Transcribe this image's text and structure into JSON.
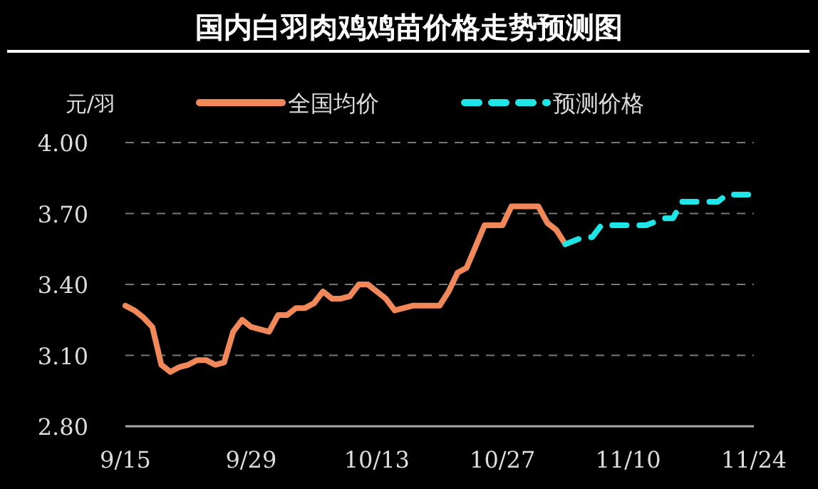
{
  "chart_data": {
    "type": "line",
    "title": "国内白羽肉鸡鸡苗价格走势预测图",
    "ylabel": "元/羽",
    "ylim": [
      2.8,
      4.0
    ],
    "yticks": [
      {
        "value": 2.8,
        "label": "2.80"
      },
      {
        "value": 3.1,
        "label": "3.10"
      },
      {
        "value": 3.4,
        "label": "3.40"
      },
      {
        "value": 3.7,
        "label": "3.70"
      },
      {
        "value": 4.0,
        "label": "4.00"
      }
    ],
    "xlim": [
      "--09-15",
      "--11-24"
    ],
    "xticks": [
      {
        "value": "--09-15",
        "label": "9/15"
      },
      {
        "value": "--09-29",
        "label": "9/29"
      },
      {
        "value": "--10-13",
        "label": "10/13"
      },
      {
        "value": "--10-27",
        "label": "10/27"
      },
      {
        "value": "--11-10",
        "label": "11/10"
      },
      {
        "value": "--11-24",
        "label": "11/24"
      }
    ],
    "grid": "y",
    "legend": "top",
    "series": [
      {
        "name": "全国均价",
        "color": "#f0885a",
        "line_style": "solid",
        "x": [
          "--09-15",
          "--09-16",
          "--09-17",
          "--09-18",
          "--09-19",
          "--09-20",
          "--09-21",
          "--09-22",
          "--09-23",
          "--09-24",
          "--09-25",
          "--09-26",
          "--09-27",
          "--09-28",
          "--09-29",
          "--10-01",
          "--10-02",
          "--10-03",
          "--10-04",
          "--10-05",
          "--10-06",
          "--10-07",
          "--10-08",
          "--10-09",
          "--10-10",
          "--10-11",
          "--10-12",
          "--10-13",
          "--10-14",
          "--10-15",
          "--10-17",
          "--10-19",
          "--10-20",
          "--10-21",
          "--10-22",
          "--10-23",
          "--10-25",
          "--10-27",
          "--10-28",
          "--10-31",
          "--11-01",
          "--11-02",
          "--11-03"
        ],
        "values": [
          3.31,
          3.29,
          3.26,
          3.22,
          3.06,
          3.03,
          3.05,
          3.06,
          3.08,
          3.08,
          3.06,
          3.07,
          3.2,
          3.25,
          3.22,
          3.2,
          3.27,
          3.27,
          3.3,
          3.3,
          3.32,
          3.37,
          3.34,
          3.34,
          3.35,
          3.4,
          3.4,
          3.37,
          3.34,
          3.29,
          3.31,
          3.31,
          3.31,
          3.37,
          3.45,
          3.47,
          3.65,
          3.65,
          3.73,
          3.73,
          3.66,
          3.63,
          3.57
        ]
      },
      {
        "name": "预测价格",
        "color": "#1ee6e6",
        "line_style": "dashed",
        "x": [
          "--11-03",
          "--11-05",
          "--11-06",
          "--11-07",
          "--11-10",
          "--11-12",
          "--11-14",
          "--11-15",
          "--11-16",
          "--11-20",
          "--11-21",
          "--11-24"
        ],
        "values": [
          3.57,
          3.6,
          3.6,
          3.65,
          3.65,
          3.65,
          3.68,
          3.68,
          3.75,
          3.75,
          3.78,
          3.78
        ]
      }
    ]
  }
}
